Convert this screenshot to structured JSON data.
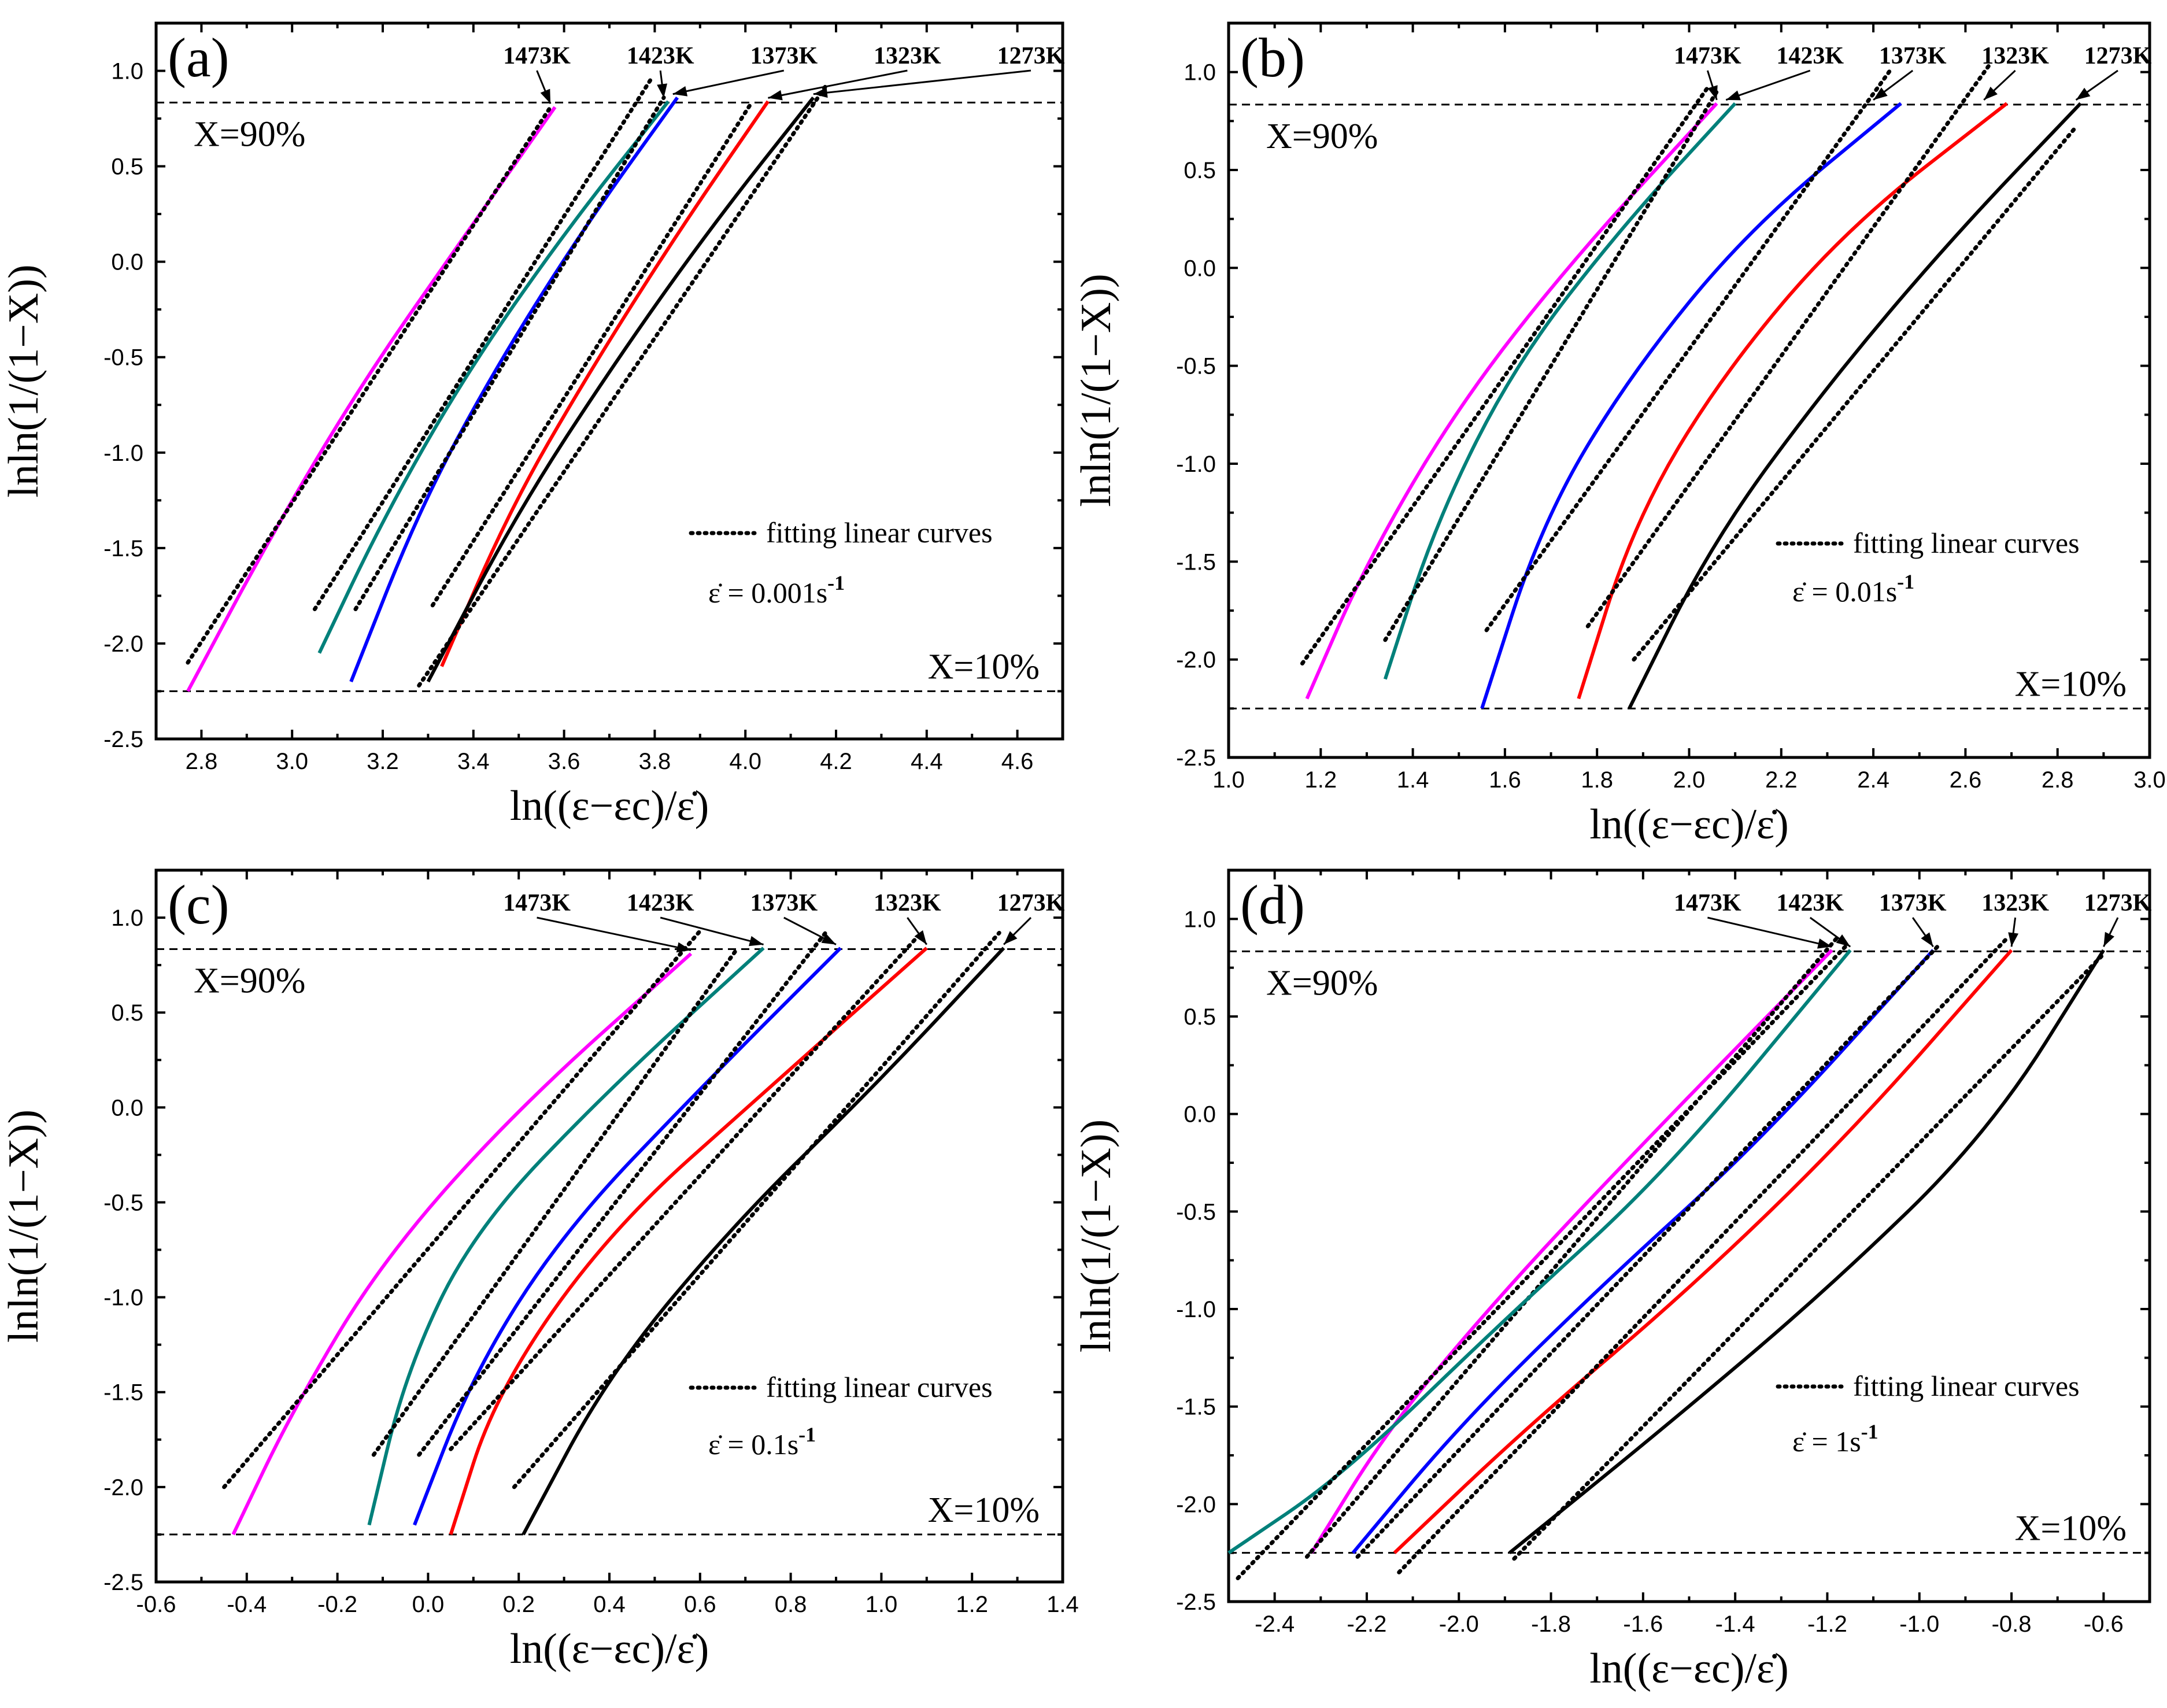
{
  "figure": {
    "colors": {
      "1473K": "#ff00ff",
      "1423K": "#00807a",
      "1373K": "#0000ff",
      "1323K": "#ff0000",
      "1273K": "#000000"
    },
    "legend_text": "fitting linear curves",
    "x_label": "ln((ε−εc)/ε̇)",
    "y_label": "lnln(1/(1−X))",
    "x90_label": "X=90%",
    "x10_label": "X=10%"
  },
  "chart_data": [
    {
      "type": "line",
      "panel": "(a)",
      "rate_prefix": "ε̇ = 0.001s",
      "rate_exp": "-1",
      "xlim": [
        2.7,
        4.7
      ],
      "ylim": [
        -2.5,
        1.25
      ],
      "xticks": [
        2.8,
        3.0,
        3.2,
        3.4,
        3.6,
        3.8,
        4.0,
        4.2,
        4.4,
        4.6
      ],
      "xtick_labels": [
        "2.8",
        "3.0",
        "3.2",
        "3.4",
        "3.6",
        "3.8",
        "4.0",
        "4.2",
        "4.4",
        "4.6"
      ],
      "yticks": [
        -2.5,
        -2.0,
        -1.5,
        -1.0,
        -0.5,
        0.0,
        0.5,
        1.0
      ],
      "ytick_labels": [
        "-2.5",
        "-2.0",
        "-1.5",
        "-1.0",
        "-0.5",
        "0.0",
        "0.5",
        "1.0"
      ],
      "x90": 0.834,
      "x10": -2.25,
      "series": [
        {
          "name": "1473K",
          "x": [
            2.77,
            2.95,
            3.15,
            3.37,
            3.58
          ],
          "y": [
            -2.25,
            -1.45,
            -0.65,
            0.1,
            0.81
          ],
          "fit_x": [
            2.77,
            3.57
          ],
          "fit_y": [
            -2.1,
            0.81
          ]
        },
        {
          "name": "1423K",
          "x": [
            3.06,
            3.2,
            3.38,
            3.6,
            3.83
          ],
          "y": [
            -2.05,
            -1.35,
            -0.6,
            0.15,
            0.84
          ],
          "fit_x": [
            3.05,
            3.79
          ],
          "fit_y": [
            -1.82,
            0.95
          ]
        },
        {
          "name": "1373K",
          "x": [
            3.13,
            3.28,
            3.45,
            3.65,
            3.85
          ],
          "y": [
            -2.2,
            -1.3,
            -0.55,
            0.2,
            0.86
          ],
          "fit_x": [
            3.14,
            3.82
          ],
          "fit_y": [
            -1.82,
            0.86
          ]
        },
        {
          "name": "1323K",
          "x": [
            3.33,
            3.48,
            3.65,
            3.85,
            4.05
          ],
          "y": [
            -2.12,
            -1.3,
            -0.6,
            0.15,
            0.84
          ],
          "fit_x": [
            3.31,
            4.01
          ],
          "fit_y": [
            -1.8,
            0.82
          ]
        },
        {
          "name": "1273K",
          "x": [
            3.3,
            3.5,
            3.72,
            3.93,
            4.15
          ],
          "y": [
            -2.2,
            -1.3,
            -0.5,
            0.2,
            0.86
          ],
          "fit_x": [
            3.28,
            4.18
          ],
          "fit_y": [
            -2.22,
            0.93
          ]
        }
      ],
      "temp_labels": [
        {
          "text": "1473K",
          "x": 3.57,
          "y": 0.81
        },
        {
          "text": "1423K",
          "x": 3.82,
          "y": 0.84
        },
        {
          "text": "1373K",
          "x": 3.84,
          "y": 0.86
        },
        {
          "text": "1323K",
          "x": 4.05,
          "y": 0.84
        },
        {
          "text": "1273K",
          "x": 4.15,
          "y": 0.86
        }
      ]
    },
    {
      "type": "line",
      "panel": "(b)",
      "rate_prefix": "ε̇ = 0.01s",
      "rate_exp": "-1",
      "xlim": [
        1.0,
        3.0
      ],
      "ylim": [
        -2.5,
        1.25
      ],
      "xticks": [
        1.0,
        1.2,
        1.4,
        1.6,
        1.8,
        2.0,
        2.2,
        2.4,
        2.6,
        2.8,
        3.0
      ],
      "xtick_labels": [
        "1.0",
        "1.2",
        "1.4",
        "1.6",
        "1.8",
        "2.0",
        "2.2",
        "2.4",
        "2.6",
        "2.8",
        "3.0"
      ],
      "yticks": [
        -2.5,
        -2.0,
        -1.5,
        -1.0,
        -0.5,
        0.0,
        0.5,
        1.0
      ],
      "ytick_labels": [
        "-2.5",
        "-2.0",
        "-1.5",
        "-1.0",
        "-0.5",
        "0.0",
        "0.5",
        "1.0"
      ],
      "x90": 0.834,
      "x10": -2.25,
      "series": [
        {
          "name": "1473K",
          "x": [
            1.17,
            1.3,
            1.5,
            1.75,
            2.06
          ],
          "y": [
            -2.2,
            -1.5,
            -0.7,
            0.05,
            0.84
          ],
          "fit_x": [
            1.16,
            2.04
          ],
          "fit_y": [
            -2.02,
            0.92
          ]
        },
        {
          "name": "1423K",
          "x": [
            1.34,
            1.45,
            1.62,
            1.85,
            2.1
          ],
          "y": [
            -2.1,
            -1.3,
            -0.5,
            0.2,
            0.84
          ],
          "fit_x": [
            1.34,
            2.06
          ],
          "fit_y": [
            -1.9,
            0.9
          ]
        },
        {
          "name": "1373K",
          "x": [
            1.55,
            1.68,
            1.87,
            2.13,
            2.46
          ],
          "y": [
            -2.25,
            -1.3,
            -0.55,
            0.2,
            0.84
          ],
          "fit_x": [
            1.56,
            2.44
          ],
          "fit_y": [
            -1.85,
            1.02
          ]
        },
        {
          "name": "1323K",
          "x": [
            1.76,
            1.88,
            2.07,
            2.34,
            2.69
          ],
          "y": [
            -2.2,
            -1.3,
            -0.55,
            0.2,
            0.84
          ],
          "fit_x": [
            1.78,
            2.65
          ],
          "fit_y": [
            -1.83,
            1.03
          ]
        },
        {
          "name": "1273K",
          "x": [
            1.87,
            2.05,
            2.3,
            2.57,
            2.85
          ],
          "y": [
            -2.25,
            -1.4,
            -0.6,
            0.15,
            0.84
          ],
          "fit_x": [
            1.88,
            2.84
          ],
          "fit_y": [
            -2.0,
            0.72
          ]
        }
      ],
      "temp_labels": [
        {
          "text": "1473K",
          "x": 2.06,
          "y": 0.84
        },
        {
          "text": "1423K",
          "x": 2.08,
          "y": 0.84
        },
        {
          "text": "1373K",
          "x": 2.4,
          "y": 0.84
        },
        {
          "text": "1323K",
          "x": 2.64,
          "y": 0.84
        },
        {
          "text": "1273K",
          "x": 2.84,
          "y": 0.84
        }
      ]
    },
    {
      "type": "line",
      "panel": "(c)",
      "rate_prefix": "ε̇ = 0.1s",
      "rate_exp": "-1",
      "xlim": [
        -0.6,
        1.4
      ],
      "ylim": [
        -2.5,
        1.25
      ],
      "xticks": [
        -0.6,
        -0.4,
        -0.2,
        0.0,
        0.2,
        0.4,
        0.6,
        0.8,
        1.0,
        1.2,
        1.4
      ],
      "xtick_labels": [
        "-0.6",
        "-0.4",
        "-0.2",
        "0.0",
        "0.2",
        "0.4",
        "0.6",
        "0.8",
        "1.0",
        "1.2",
        "1.4"
      ],
      "yticks": [
        -2.5,
        -2.0,
        -1.5,
        -1.0,
        -0.5,
        0.0,
        0.5,
        1.0
      ],
      "ytick_labels": [
        "-2.5",
        "-2.0",
        "-1.5",
        "-1.0",
        "-0.5",
        "0.0",
        "0.5",
        "1.0"
      ],
      "x90": 0.834,
      "x10": -2.25,
      "series": [
        {
          "name": "1473K",
          "x": [
            -0.43,
            -0.3,
            -0.1,
            0.2,
            0.58
          ],
          "y": [
            -2.25,
            -1.6,
            -0.8,
            0.0,
            0.81
          ],
          "fit_x": [
            -0.45,
            0.6
          ],
          "fit_y": [
            -2.0,
            0.93
          ]
        },
        {
          "name": "1423K",
          "x": [
            -0.13,
            -0.05,
            0.1,
            0.4,
            0.74
          ],
          "y": [
            -2.2,
            -1.4,
            -0.65,
            0.1,
            0.84
          ],
          "fit_x": [
            -0.12,
            0.68
          ],
          "fit_y": [
            -1.83,
            0.83
          ]
        },
        {
          "name": "1373K",
          "x": [
            -0.03,
            0.1,
            0.3,
            0.6,
            0.91
          ],
          "y": [
            -2.2,
            -1.4,
            -0.65,
            0.1,
            0.84
          ],
          "fit_x": [
            -0.02,
            0.88
          ],
          "fit_y": [
            -1.83,
            0.93
          ]
        },
        {
          "name": "1323K",
          "x": [
            0.05,
            0.15,
            0.4,
            0.75,
            1.1
          ],
          "y": [
            -2.25,
            -1.5,
            -0.65,
            0.1,
            0.84
          ],
          "fit_x": [
            0.05,
            1.08
          ],
          "fit_y": [
            -1.8,
            0.9
          ]
        },
        {
          "name": "1273K",
          "x": [
            0.21,
            0.4,
            0.68,
            0.98,
            1.27
          ],
          "y": [
            -2.25,
            -1.4,
            -0.6,
            0.1,
            0.84
          ],
          "fit_x": [
            0.19,
            1.26
          ],
          "fit_y": [
            -2.0,
            0.92
          ]
        }
      ],
      "temp_labels": [
        {
          "text": "1473K",
          "x": 0.58,
          "y": 0.81
        },
        {
          "text": "1423K",
          "x": 0.74,
          "y": 0.84
        },
        {
          "text": "1373K",
          "x": 0.9,
          "y": 0.84
        },
        {
          "text": "1323K",
          "x": 1.1,
          "y": 0.84
        },
        {
          "text": "1273K",
          "x": 1.27,
          "y": 0.84
        }
      ]
    },
    {
      "type": "line",
      "panel": "(d)",
      "rate_prefix": "ε̇ = 1s",
      "rate_exp": "-1",
      "xlim": [
        -2.5,
        -0.5
      ],
      "ylim": [
        -2.5,
        1.25
      ],
      "xticks": [
        -2.4,
        -2.2,
        -2.0,
        -1.8,
        -1.6,
        -1.4,
        -1.2,
        -1.0,
        -0.8,
        -0.6
      ],
      "xtick_labels": [
        "-2.4",
        "-2.2",
        "-2.0",
        "-1.8",
        "-1.6",
        "-1.4",
        "-1.2",
        "-1.0",
        "-0.8",
        "-0.6"
      ],
      "yticks": [
        -2.5,
        -2.0,
        -1.5,
        -1.0,
        -0.5,
        0.0,
        0.5,
        1.0
      ],
      "ytick_labels": [
        "-2.5",
        "-2.0",
        "-1.5",
        "-1.0",
        "-0.5",
        "0.0",
        "0.5",
        "1.0"
      ],
      "x90": 0.834,
      "x10": -2.25,
      "series": [
        {
          "name": "1473K",
          "x": [
            -2.32,
            -2.15,
            -1.9,
            -1.6,
            -1.19
          ],
          "y": [
            -2.25,
            -1.6,
            -0.9,
            -0.15,
            0.84
          ],
          "fit_x": [
            -2.33,
            -1.18
          ],
          "fit_y": [
            -2.27,
            0.9
          ]
        },
        {
          "name": "1423K",
          "x": [
            -2.5,
            -2.25,
            -1.9,
            -1.55,
            -1.15
          ],
          "y": [
            -2.25,
            -1.85,
            -1.05,
            -0.3,
            0.84
          ],
          "fit_x": [
            -2.48,
            -1.16
          ],
          "fit_y": [
            -2.38,
            0.86
          ]
        },
        {
          "name": "1373K",
          "x": [
            -2.23,
            -2.0,
            -1.7,
            -1.35,
            -0.97
          ],
          "y": [
            -2.25,
            -1.6,
            -0.9,
            -0.15,
            0.84
          ],
          "fit_x": [
            -2.22,
            -0.96
          ],
          "fit_y": [
            -2.27,
            0.86
          ]
        },
        {
          "name": "1323K",
          "x": [
            -2.14,
            -1.85,
            -1.5,
            -1.15,
            -0.8
          ],
          "y": [
            -2.25,
            -1.6,
            -0.9,
            -0.1,
            0.84
          ],
          "fit_x": [
            -2.13,
            -0.81
          ],
          "fit_y": [
            -2.35,
            0.9
          ]
        },
        {
          "name": "1273K",
          "x": [
            -1.89,
            -1.55,
            -1.2,
            -0.85,
            -0.6
          ],
          "y": [
            -2.25,
            -1.6,
            -0.9,
            -0.1,
            0.84
          ],
          "fit_x": [
            -1.88,
            -0.6
          ],
          "fit_y": [
            -2.28,
            0.82
          ]
        }
      ],
      "temp_labels": [
        {
          "text": "1473K",
          "x": -1.19,
          "y": 0.84
        },
        {
          "text": "1423K",
          "x": -1.15,
          "y": 0.84
        },
        {
          "text": "1373K",
          "x": -0.97,
          "y": 0.84
        },
        {
          "text": "1323K",
          "x": -0.8,
          "y": 0.84
        },
        {
          "text": "1273K",
          "x": -0.6,
          "y": 0.84
        }
      ]
    }
  ]
}
